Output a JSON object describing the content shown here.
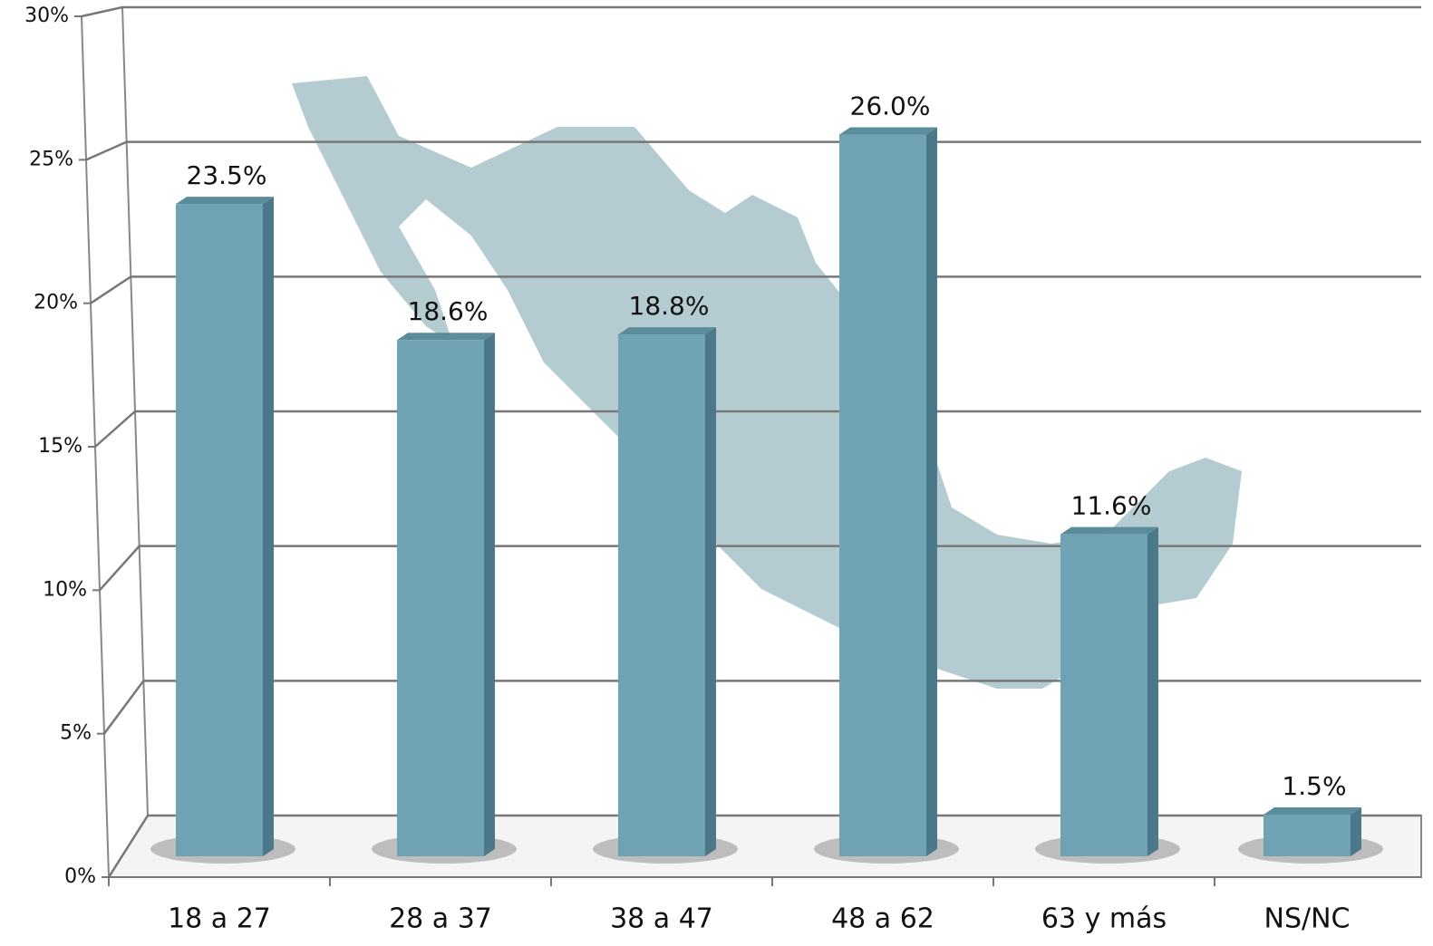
{
  "chart_data": {
    "type": "bar",
    "categories": [
      "18 a 27",
      "28 a 37",
      "38 a 47",
      "48 a 62",
      "63 y más",
      "NS/NC"
    ],
    "values": [
      23.5,
      18.6,
      18.8,
      26.0,
      11.6,
      1.5
    ],
    "value_labels": [
      "23.5%",
      "18.6%",
      "18.8%",
      "26.0%",
      "11.6%",
      "1.5%"
    ],
    "color": "#6fa3b3",
    "ylim": [
      0,
      30
    ],
    "yticks": [
      {
        "value": 0,
        "label": "0%"
      },
      {
        "value": 5,
        "label": "5%"
      },
      {
        "value": 10,
        "label": "10%"
      },
      {
        "value": 15,
        "label": "15%"
      },
      {
        "value": 20,
        "label": "20%"
      },
      {
        "value": 25,
        "label": "25%"
      },
      {
        "value": 30,
        "label": "30%"
      }
    ],
    "grid": true
  }
}
